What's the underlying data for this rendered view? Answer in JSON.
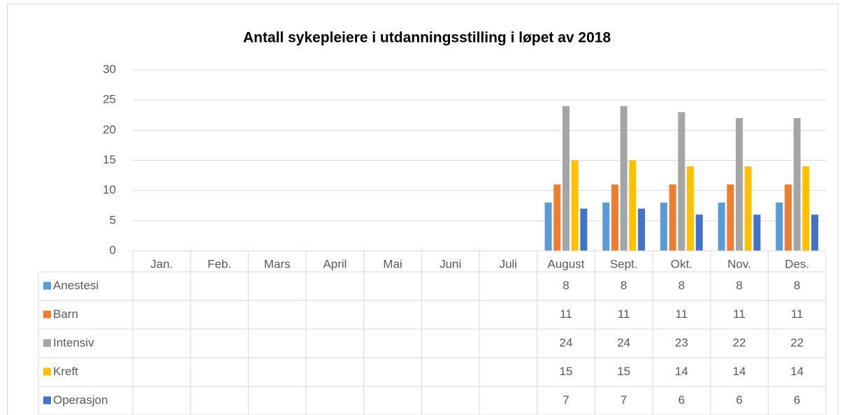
{
  "chart_data": {
    "type": "bar",
    "title": "Antall sykepleiere i utdanningsstilling i løpet av 2018",
    "categories": [
      "Jan.",
      "Feb.",
      "Mars",
      "April",
      "Mai",
      "Juni",
      "Juli",
      "August",
      "Sept.",
      "Okt.",
      "Nov.",
      "Des."
    ],
    "series": [
      {
        "name": "Anestesi",
        "color": "#5b9bd5",
        "values": [
          null,
          null,
          null,
          null,
          null,
          null,
          null,
          8,
          8,
          8,
          8,
          8
        ]
      },
      {
        "name": "Barn",
        "color": "#ed7d31",
        "values": [
          null,
          null,
          null,
          null,
          null,
          null,
          null,
          11,
          11,
          11,
          11,
          11
        ]
      },
      {
        "name": "Intensiv",
        "color": "#a5a5a5",
        "values": [
          null,
          null,
          null,
          null,
          null,
          null,
          null,
          24,
          24,
          23,
          22,
          22
        ]
      },
      {
        "name": "Kreft",
        "color": "#ffc000",
        "values": [
          null,
          null,
          null,
          null,
          null,
          null,
          null,
          15,
          15,
          14,
          14,
          14
        ]
      },
      {
        "name": "Operasjon",
        "color": "#4472c4",
        "values": [
          null,
          null,
          null,
          null,
          null,
          null,
          null,
          7,
          7,
          6,
          6,
          6
        ]
      }
    ],
    "ylim": [
      0,
      30
    ],
    "yticks": [
      0,
      5,
      10,
      15,
      20,
      25,
      30
    ],
    "grid": true,
    "data_table": true
  }
}
